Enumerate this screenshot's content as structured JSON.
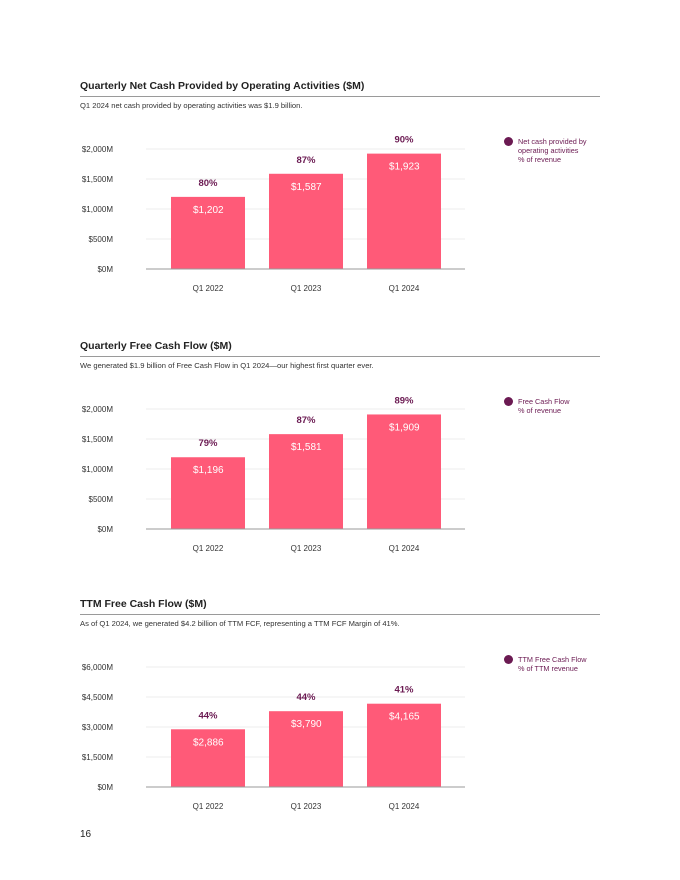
{
  "page": {
    "number": "16"
  },
  "colors": {
    "bar": "#ff5a78",
    "accent": "#6b1a52",
    "axis": "#9a9a9a",
    "grid": "#e6e6e6"
  },
  "sections": [
    {
      "title": "Quarterly Net Cash Provided by Operating Activities ($M)",
      "subtitle": "Q1 2024 net cash provided by operating activities was $1.9 billion.",
      "legend": {
        "lines": [
          "Net cash provided by",
          "operating activities",
          "% of revenue"
        ]
      }
    },
    {
      "title": "Quarterly Free Cash Flow ($M)",
      "subtitle": "We generated $1.9 billion of Free Cash Flow in Q1 2024—our highest first quarter ever.",
      "legend": {
        "lines": [
          "Free Cash Flow",
          "% of revenue"
        ]
      }
    },
    {
      "title": "TTM Free Cash Flow ($M)",
      "subtitle": "As of Q1 2024, we generated $4.2 billion of TTM FCF, representing a TTM FCF Margin of 41%.",
      "legend": {
        "lines": [
          "TTM Free Cash Flow",
          "% of TTM revenue"
        ]
      }
    }
  ],
  "chart_data": [
    {
      "type": "bar",
      "title": "Quarterly Net Cash Provided by Operating Activities ($M)",
      "categories": [
        "Q1 2022",
        "Q1 2023",
        "Q1 2024"
      ],
      "values": [
        1202,
        1587,
        1923
      ],
      "value_labels": [
        "$1,202",
        "$1,587",
        "$1,923"
      ],
      "percent_labels": [
        "80%",
        "87%",
        "90%"
      ],
      "yticks": [
        0,
        500,
        1000,
        1500,
        2000
      ],
      "ytick_labels": [
        "$0M",
        "$500M",
        "$1,000M",
        "$1,500M",
        "$2,000M"
      ],
      "ylim": [
        0,
        2000
      ],
      "xlabel": "",
      "ylabel": ""
    },
    {
      "type": "bar",
      "title": "Quarterly Free Cash Flow ($M)",
      "categories": [
        "Q1 2022",
        "Q1 2023",
        "Q1 2024"
      ],
      "values": [
        1196,
        1581,
        1909
      ],
      "value_labels": [
        "$1,196",
        "$1,581",
        "$1,909"
      ],
      "percent_labels": [
        "79%",
        "87%",
        "89%"
      ],
      "yticks": [
        0,
        500,
        1000,
        1500,
        2000
      ],
      "ytick_labels": [
        "$0M",
        "$500M",
        "$1,000M",
        "$1,500M",
        "$2,000M"
      ],
      "ylim": [
        0,
        2000
      ],
      "xlabel": "",
      "ylabel": ""
    },
    {
      "type": "bar",
      "title": "TTM Free Cash Flow ($M)",
      "categories": [
        "Q1 2022",
        "Q1 2023",
        "Q1 2024"
      ],
      "values": [
        2886,
        3790,
        4165
      ],
      "value_labels": [
        "$2,886",
        "$3,790",
        "$4,165"
      ],
      "percent_labels": [
        "44%",
        "44%",
        "41%"
      ],
      "yticks": [
        0,
        1500,
        3000,
        4500,
        6000
      ],
      "ytick_labels": [
        "$0M",
        "$1,500M",
        "$3,000M",
        "$4,500M",
        "$6,000M"
      ],
      "ylim": [
        0,
        6000
      ],
      "xlabel": "",
      "ylabel": ""
    }
  ]
}
